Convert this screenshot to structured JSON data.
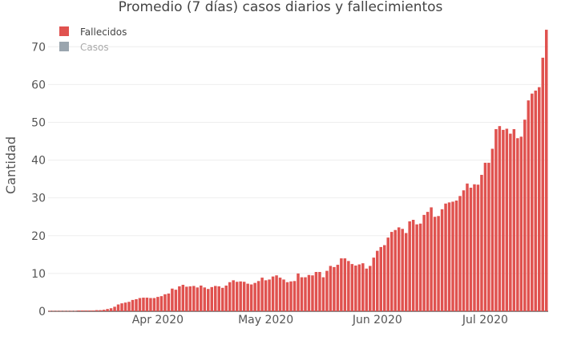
{
  "chart_data": {
    "type": "bar",
    "title": "Promedio (7 días) casos diarios y fallecimientos",
    "xlabel": "",
    "ylabel": "Cantidad",
    "start_date": "2020-03-02",
    "x_ticks": [
      {
        "label": "Apr 2020",
        "date": "2020-04-01"
      },
      {
        "label": "May 2020",
        "date": "2020-05-01"
      },
      {
        "label": "Jun 2020",
        "date": "2020-06-01"
      },
      {
        "label": "Jul 2020",
        "date": "2020-07-01"
      }
    ],
    "ylim": [
      0,
      76
    ],
    "y_ticks": [
      0,
      10,
      20,
      30,
      40,
      50,
      60,
      70
    ],
    "grid": true,
    "legend_position": "top-left",
    "series": [
      {
        "name": "Fallecidos",
        "color": "#e0524f",
        "visible": true,
        "values": [
          0.1,
          0.1,
          0.1,
          0.1,
          0.1,
          0.1,
          0.1,
          0.1,
          0.2,
          0.2,
          0.2,
          0.2,
          0.2,
          0.3,
          0.3,
          0.4,
          0.6,
          0.8,
          1.2,
          1.8,
          2.1,
          2.3,
          2.5,
          3.0,
          3.2,
          3.5,
          3.6,
          3.6,
          3.5,
          3.5,
          3.8,
          4.0,
          4.5,
          4.7,
          6.0,
          5.7,
          6.6,
          7.0,
          6.5,
          6.6,
          6.7,
          6.3,
          6.8,
          6.3,
          5.9,
          6.4,
          6.7,
          6.6,
          6.2,
          6.8,
          7.7,
          8.2,
          7.8,
          7.9,
          7.8,
          7.3,
          7.1,
          7.5,
          8.0,
          8.9,
          8.2,
          8.4,
          9.2,
          9.5,
          8.9,
          8.4,
          7.7,
          7.9,
          8.0,
          10.0,
          9.0,
          9.0,
          9.6,
          9.5,
          10.4,
          10.4,
          9.0,
          10.7,
          12.0,
          11.7,
          12.3,
          14.0,
          14.0,
          13.3,
          12.5,
          12.1,
          12.4,
          12.7,
          11.3,
          12.0,
          14.2,
          16.0,
          17.0,
          17.5,
          19.5,
          21.0,
          21.5,
          22.2,
          21.8,
          20.7,
          23.8,
          24.2,
          23.0,
          23.2,
          25.5,
          26.3,
          27.5,
          25.0,
          25.2,
          27.0,
          28.5,
          28.8,
          29.0,
          29.3,
          30.5,
          32.0,
          33.8,
          32.7,
          33.6,
          33.5,
          36.1,
          39.3,
          39.3,
          43.0,
          48.2,
          49.0,
          48.0,
          48.3,
          47.0,
          48.2,
          45.8,
          46.2,
          50.7,
          55.8,
          57.6,
          58.4,
          59.3,
          67.1,
          74.5
        ]
      },
      {
        "name": "Casos",
        "color": "#9aa5ae",
        "visible": false,
        "values": []
      }
    ]
  }
}
